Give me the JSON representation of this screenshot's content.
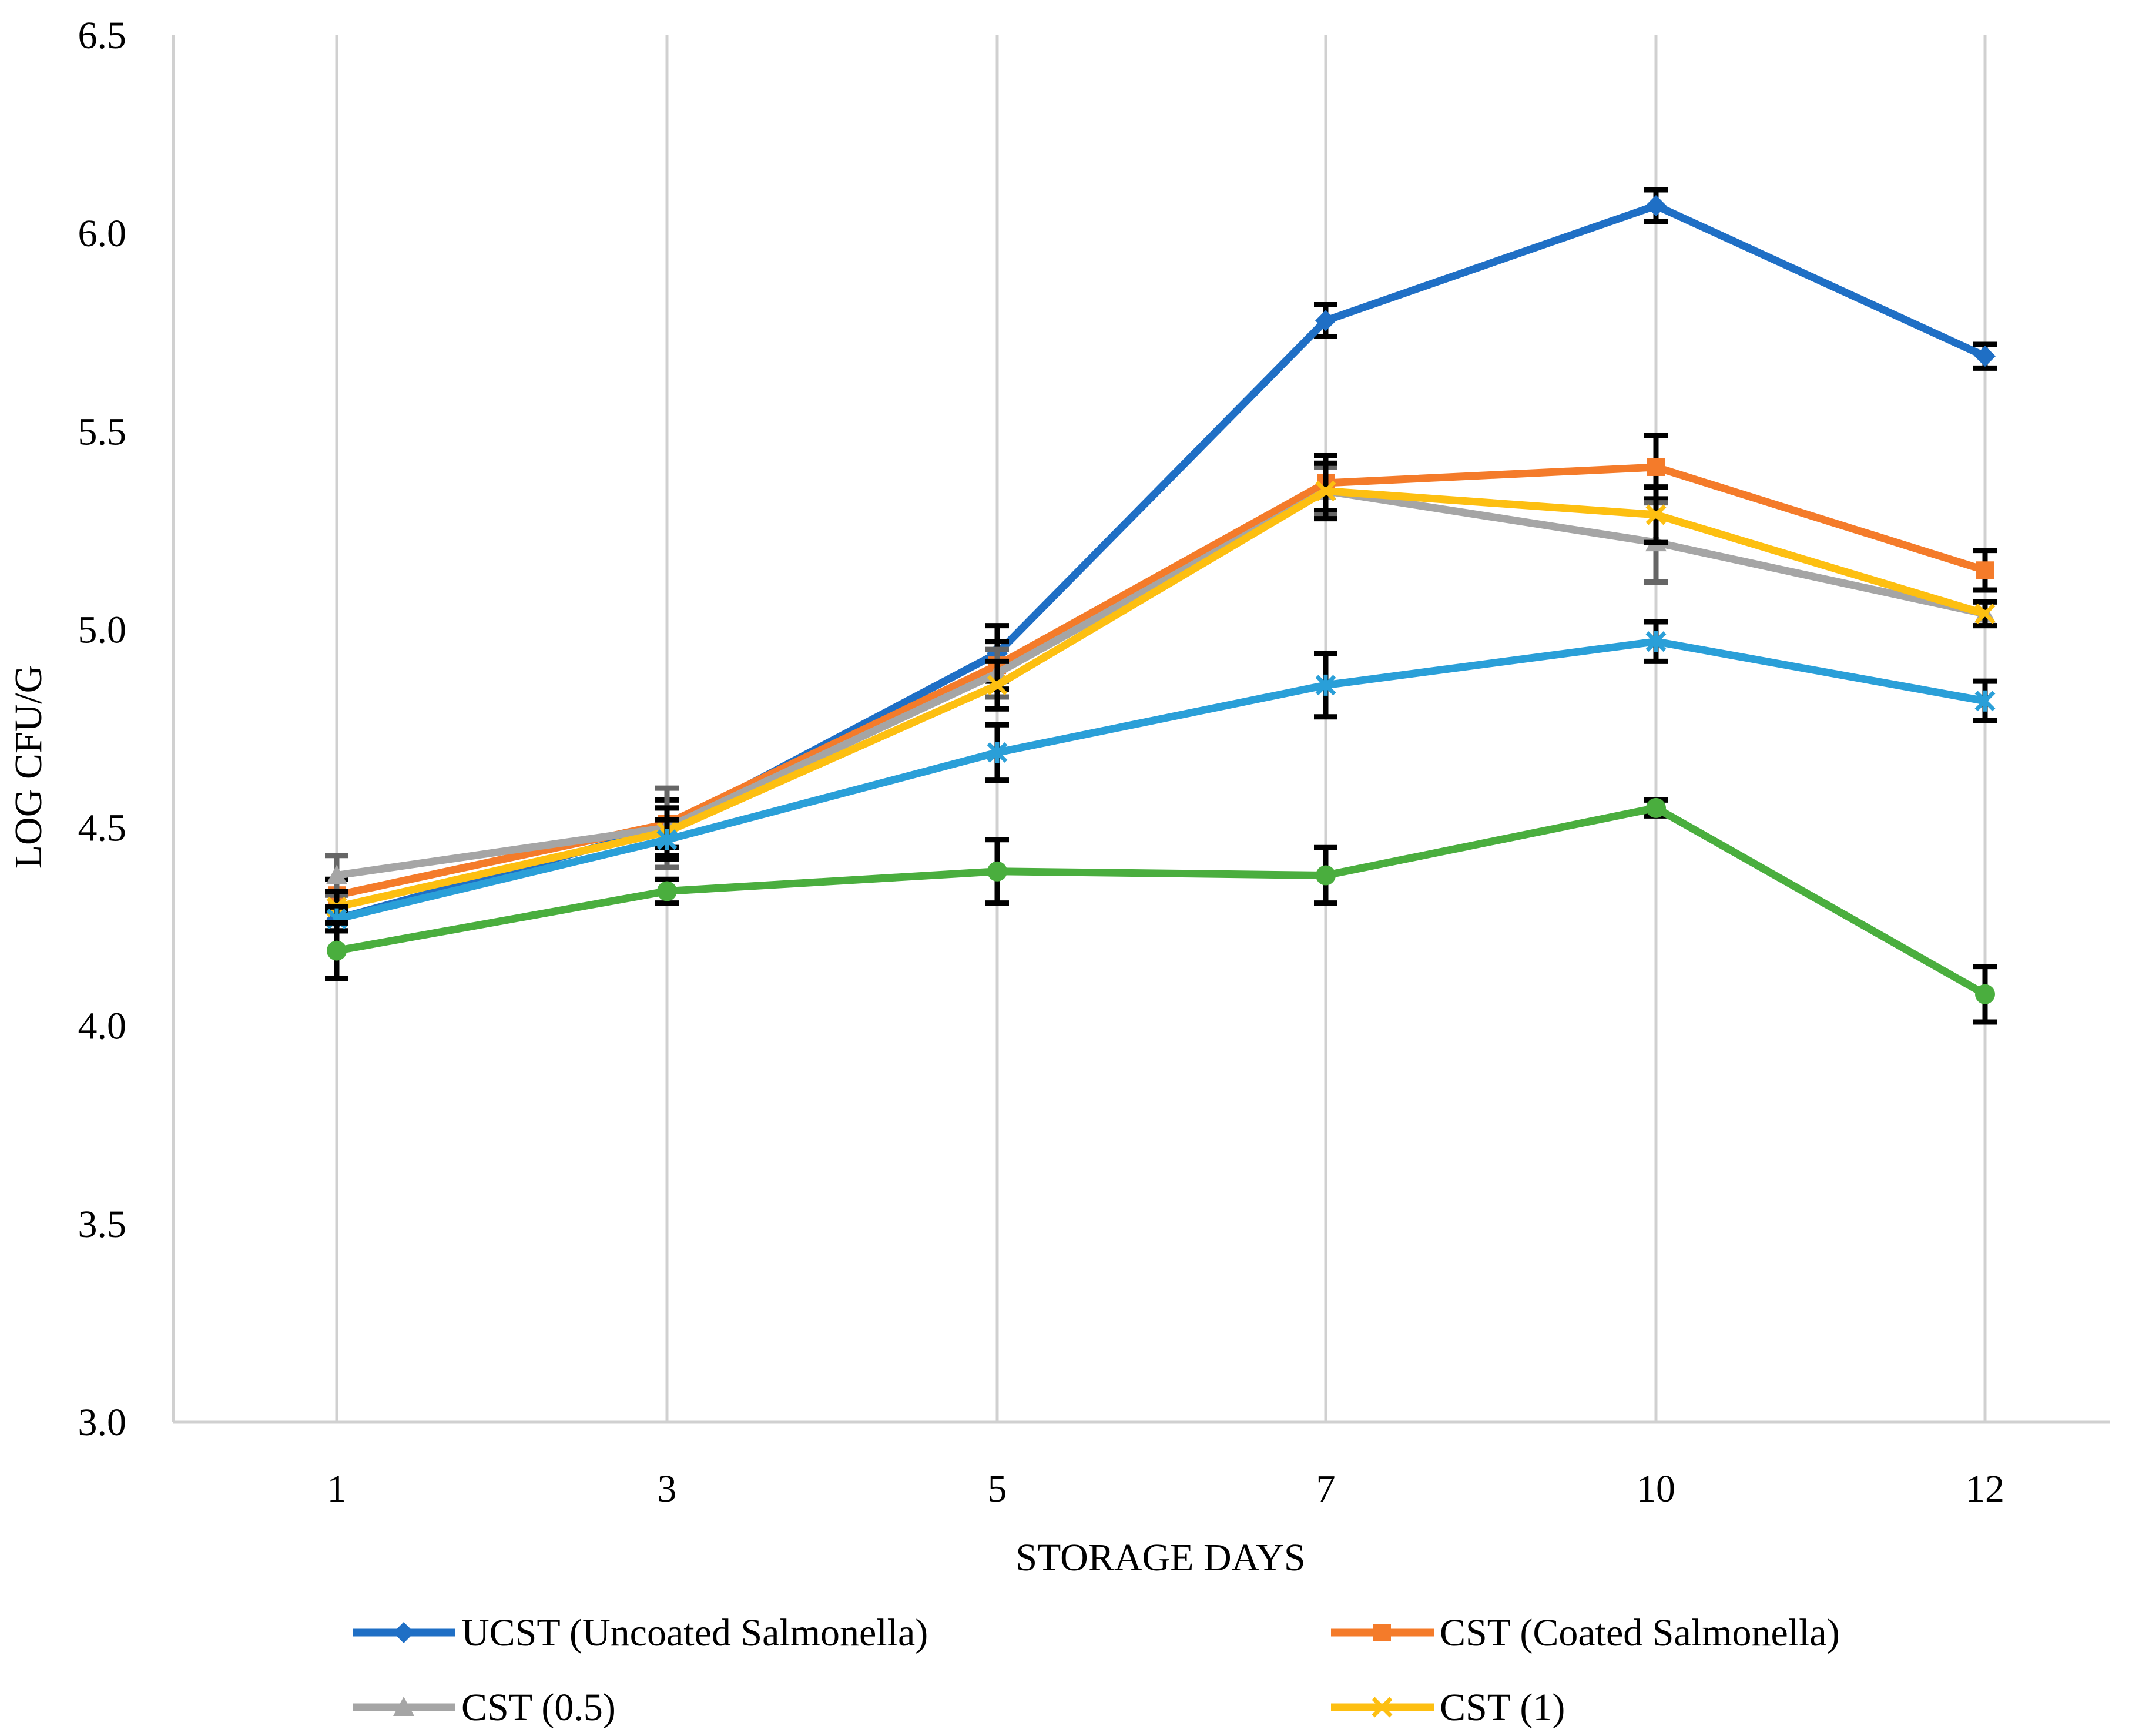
{
  "chart_data": {
    "type": "line",
    "title": "",
    "xlabel": "STORAGE DAYS",
    "ylabel": "LOG CFU/G",
    "categories": [
      "1",
      "3",
      "5",
      "7",
      "10",
      "12"
    ],
    "ylim": [
      3.0,
      6.5
    ],
    "yticks": [
      "3.0",
      "3.5",
      "4.0",
      "4.5",
      "5.0",
      "5.5",
      "6.0",
      "6.5"
    ],
    "grid": "vertical",
    "legend": "bottom",
    "series": [
      {
        "name": "UCST (Uncoated Salmonella)",
        "color": "#1f6fc5",
        "marker": "diamond",
        "values": [
          4.27,
          4.5,
          4.94,
          5.78,
          6.07,
          5.69
        ],
        "errors": [
          0.03,
          0.05,
          0.07,
          0.04,
          0.04,
          0.03
        ]
      },
      {
        "name": "CST (Coated Salmonella)",
        "color": "#f47b2a",
        "marker": "square",
        "values": [
          4.33,
          4.51,
          4.91,
          5.37,
          5.41,
          5.15
        ],
        "errors": [
          0.04,
          0.06,
          0.06,
          0.07,
          0.08,
          0.05
        ]
      },
      {
        "name": "CST (0.5)",
        "color": "#a5a5a5",
        "marker": "triangle",
        "values": [
          4.38,
          4.5,
          4.89,
          5.35,
          5.22,
          5.04
        ],
        "errors": [
          0.05,
          0.1,
          0.06,
          0.06,
          0.1,
          0.03
        ]
      },
      {
        "name": "CST (1)",
        "color": "#fdbf11",
        "marker": "x",
        "values": [
          4.3,
          4.49,
          4.86,
          5.35,
          5.29,
          5.04
        ],
        "errors": [
          0.04,
          0.06,
          0.06,
          0.07,
          0.07,
          0.03
        ]
      },
      {
        "name": "",
        "color": "#2a9fd8",
        "marker": "star",
        "values": [
          4.27,
          4.47,
          4.69,
          4.86,
          4.97,
          4.82
        ],
        "errors": [
          0.03,
          0.05,
          0.07,
          0.08,
          0.05,
          0.05
        ]
      },
      {
        "name": "",
        "color": "#4aae3e",
        "marker": "circle",
        "values": [
          4.19,
          4.34,
          4.39,
          4.38,
          4.55,
          4.08
        ],
        "errors": [
          0.07,
          0.03,
          0.08,
          0.07,
          0.02,
          0.07
        ]
      }
    ]
  }
}
